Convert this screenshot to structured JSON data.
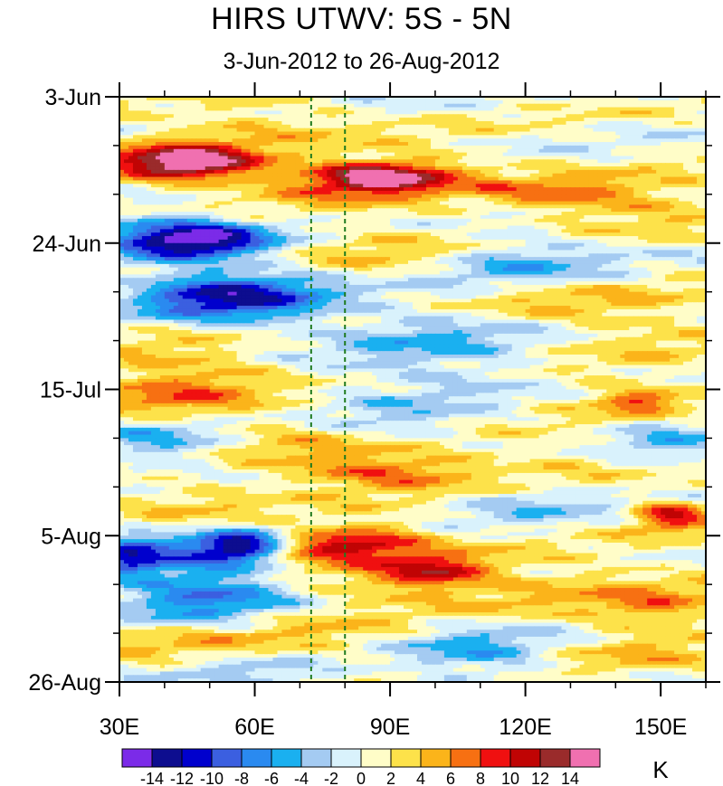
{
  "chart_data": {
    "type": "heatmap",
    "title": "HIRS UTWV: 5S - 5N",
    "subtitle": "3-Jun-2012 to 26-Aug-2012",
    "x_axis": {
      "range": [
        30,
        160
      ],
      "ticks": [
        {
          "value": 30,
          "label": "30E"
        },
        {
          "value": 60,
          "label": "60E"
        },
        {
          "value": 90,
          "label": "90E"
        },
        {
          "value": 120,
          "label": "120E"
        },
        {
          "value": 150,
          "label": "150E"
        }
      ]
    },
    "y_axis": {
      "range_days": [
        0,
        84
      ],
      "ticks": [
        {
          "day": 0,
          "label": "3-Jun"
        },
        {
          "day": 21,
          "label": "24-Jun"
        },
        {
          "day": 42,
          "label": "15-Jul"
        },
        {
          "day": 63,
          "label": "5-Aug"
        },
        {
          "day": 84,
          "label": "26-Aug"
        }
      ]
    },
    "reference_lines_lon": [
      72.5,
      80
    ],
    "colorbar": {
      "unit": "K",
      "levels": [
        -14,
        -12,
        -10,
        -8,
        -6,
        -4,
        -2,
        0,
        2,
        4,
        6,
        8,
        10,
        12,
        14
      ],
      "level_labels": [
        "-14",
        "-12",
        "-10",
        "-8",
        "-6",
        "-4",
        "-2",
        "0",
        "2",
        "4",
        "6",
        "8",
        "10",
        "12",
        "14"
      ],
      "colors": [
        "#7b2be8",
        "#0d0d8f",
        "#0000cd",
        "#3b5fe0",
        "#2a8af0",
        "#1ab0f0",
        "#a4cbf2",
        "#d9f2fc",
        "#fffdc8",
        "#fde24a",
        "#fbb41a",
        "#f77012",
        "#f01010",
        "#c00404",
        "#9a2b2b",
        "#f070b0"
      ]
    },
    "features": [
      {
        "lon": 47,
        "day": 9.5,
        "value": 11,
        "sx": 10,
        "sy": 1.6
      },
      {
        "lon": 40,
        "day": 9.5,
        "value": 6,
        "sx": 12,
        "sy": 2.5
      },
      {
        "lon": 88,
        "day": 11.5,
        "value": 12,
        "sx": 9,
        "sy": 1.4
      },
      {
        "lon": 78,
        "day": 12,
        "value": 6,
        "sx": 14,
        "sy": 2.2
      },
      {
        "lon": 100,
        "day": 10.5,
        "value": 3,
        "sx": 10,
        "sy": 2.5
      },
      {
        "lon": 60,
        "day": 3.5,
        "value": 3,
        "sx": 16,
        "sy": 2.5
      },
      {
        "lon": 125,
        "day": 14,
        "value": 5,
        "sx": 12,
        "sy": 1.8
      },
      {
        "lon": 145,
        "day": 15,
        "value": 4,
        "sx": 14,
        "sy": 2.5
      },
      {
        "lon": 50,
        "day": 20.5,
        "value": -12,
        "sx": 10,
        "sy": 1.8
      },
      {
        "lon": 38,
        "day": 20,
        "value": -7,
        "sx": 10,
        "sy": 2.5
      },
      {
        "lon": 50,
        "day": 28.5,
        "value": -10,
        "sx": 12,
        "sy": 2.5
      },
      {
        "lon": 65,
        "day": 29,
        "value": -5,
        "sx": 12,
        "sy": 3
      },
      {
        "lon": 90,
        "day": 21.5,
        "value": 3,
        "sx": 14,
        "sy": 3
      },
      {
        "lon": 118,
        "day": 24,
        "value": -5,
        "sx": 14,
        "sy": 3
      },
      {
        "lon": 120,
        "day": 29,
        "value": 3,
        "sx": 12,
        "sy": 2.5
      },
      {
        "lon": 145,
        "day": 32,
        "value": 3,
        "sx": 14,
        "sy": 3.5
      },
      {
        "lon": 45,
        "day": 38,
        "value": 4,
        "sx": 16,
        "sy": 2.2
      },
      {
        "lon": 42,
        "day": 43,
        "value": 5,
        "sx": 14,
        "sy": 2.5
      },
      {
        "lon": 100,
        "day": 34,
        "value": -4,
        "sx": 16,
        "sy": 3
      },
      {
        "lon": 100,
        "day": 40,
        "value": -3,
        "sx": 20,
        "sy": 2.5
      },
      {
        "lon": 140,
        "day": 42,
        "value": 3,
        "sx": 14,
        "sy": 2.2
      },
      {
        "lon": 145,
        "day": 44,
        "value": 6,
        "sx": 6,
        "sy": 1.2
      },
      {
        "lon": 90,
        "day": 47,
        "value": -4,
        "sx": 14,
        "sy": 2.5
      },
      {
        "lon": 70,
        "day": 47,
        "value": 2.5,
        "sx": 14,
        "sy": 2.5
      },
      {
        "lon": 40,
        "day": 50,
        "value": -5,
        "sx": 12,
        "sy": 2.5
      },
      {
        "lon": 90,
        "day": 54,
        "value": 6,
        "sx": 14,
        "sy": 1.8
      },
      {
        "lon": 80,
        "day": 52,
        "value": 3,
        "sx": 20,
        "sy": 2.5
      },
      {
        "lon": 130,
        "day": 52,
        "value": 2.5,
        "sx": 16,
        "sy": 2.5
      },
      {
        "lon": 150,
        "day": 50,
        "value": -4,
        "sx": 10,
        "sy": 3
      },
      {
        "lon": 45,
        "day": 58,
        "value": 3,
        "sx": 14,
        "sy": 2.2
      },
      {
        "lon": 152,
        "day": 60,
        "value": 10,
        "sx": 6,
        "sy": 1.5
      },
      {
        "lon": 120,
        "day": 58,
        "value": -3,
        "sx": 14,
        "sy": 2.5
      },
      {
        "lon": 77,
        "day": 64.5,
        "value": 9,
        "sx": 10,
        "sy": 1.5
      },
      {
        "lon": 88,
        "day": 63,
        "value": 5,
        "sx": 10,
        "sy": 2
      },
      {
        "lon": 57,
        "day": 64.5,
        "value": -11,
        "sx": 6,
        "sy": 1.5
      },
      {
        "lon": 45,
        "day": 66,
        "value": -6,
        "sx": 14,
        "sy": 3
      },
      {
        "lon": 32,
        "day": 66,
        "value": -7,
        "sx": 5,
        "sy": 2
      },
      {
        "lon": 100,
        "day": 68,
        "value": 8,
        "sx": 8,
        "sy": 1.5
      },
      {
        "lon": 90,
        "day": 70,
        "value": 4,
        "sx": 18,
        "sy": 2.5
      },
      {
        "lon": 130,
        "day": 70,
        "value": 3,
        "sx": 20,
        "sy": 3
      },
      {
        "lon": 150,
        "day": 74,
        "value": 4,
        "sx": 10,
        "sy": 2.5
      },
      {
        "lon": 50,
        "day": 72,
        "value": -7,
        "sx": 14,
        "sy": 3
      },
      {
        "lon": 40,
        "day": 79,
        "value": 3,
        "sx": 14,
        "sy": 2.5
      },
      {
        "lon": 70,
        "day": 78,
        "value": 3,
        "sx": 14,
        "sy": 3
      },
      {
        "lon": 110,
        "day": 80,
        "value": -5,
        "sx": 12,
        "sy": 3
      },
      {
        "lon": 145,
        "day": 80,
        "value": 2.5,
        "sx": 14,
        "sy": 2.5
      },
      {
        "lon": 60,
        "day": 83,
        "value": -4,
        "sx": 14,
        "sy": 2
      }
    ]
  }
}
